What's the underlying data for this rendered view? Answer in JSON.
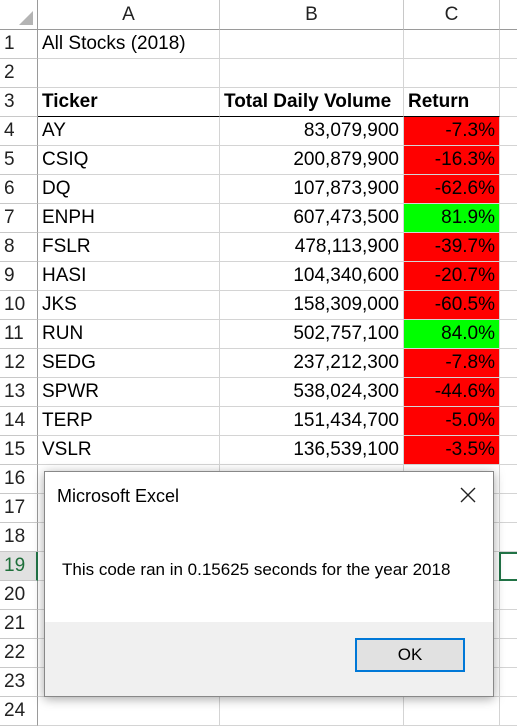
{
  "columns": [
    "A",
    "B",
    "C"
  ],
  "row_numbers": [
    "1",
    "2",
    "3",
    "4",
    "5",
    "6",
    "7",
    "8",
    "9",
    "10",
    "11",
    "12",
    "13",
    "14",
    "15",
    "16",
    "17",
    "18",
    "19",
    "20",
    "21",
    "22",
    "23",
    "24"
  ],
  "sheet": {
    "title": "All Stocks (2018)",
    "headers": {
      "ticker": "Ticker",
      "volume": "Total Daily Volume",
      "return": "Return"
    },
    "rows": [
      {
        "ticker": "AY",
        "volume": "83,079,900",
        "return": "-7.3%",
        "status": "negative"
      },
      {
        "ticker": "CSIQ",
        "volume": "200,879,900",
        "return": "-16.3%",
        "status": "negative"
      },
      {
        "ticker": "DQ",
        "volume": "107,873,900",
        "return": "-62.6%",
        "status": "negative"
      },
      {
        "ticker": "ENPH",
        "volume": "607,473,500",
        "return": "81.9%",
        "status": "positive"
      },
      {
        "ticker": "FSLR",
        "volume": "478,113,900",
        "return": "-39.7%",
        "status": "negative"
      },
      {
        "ticker": "HASI",
        "volume": "104,340,600",
        "return": "-20.7%",
        "status": "negative"
      },
      {
        "ticker": "JKS",
        "volume": "158,309,000",
        "return": "-60.5%",
        "status": "negative"
      },
      {
        "ticker": "RUN",
        "volume": "502,757,100",
        "return": "84.0%",
        "status": "positive"
      },
      {
        "ticker": "SEDG",
        "volume": "237,212,300",
        "return": "-7.8%",
        "status": "negative"
      },
      {
        "ticker": "SPWR",
        "volume": "538,024,300",
        "return": "-44.6%",
        "status": "negative"
      },
      {
        "ticker": "TERP",
        "volume": "151,434,700",
        "return": "-5.0%",
        "status": "negative"
      },
      {
        "ticker": "VSLR",
        "volume": "136,539,100",
        "return": "-3.5%",
        "status": "negative"
      }
    ]
  },
  "colors": {
    "negative": "#ff0000",
    "positive": "#00ff00",
    "selection": "#217346"
  },
  "dialog": {
    "title": "Microsoft Excel",
    "message": "This code ran in 0.15625 seconds for the year 2018",
    "ok_label": "OK",
    "close_icon": "close-icon"
  }
}
